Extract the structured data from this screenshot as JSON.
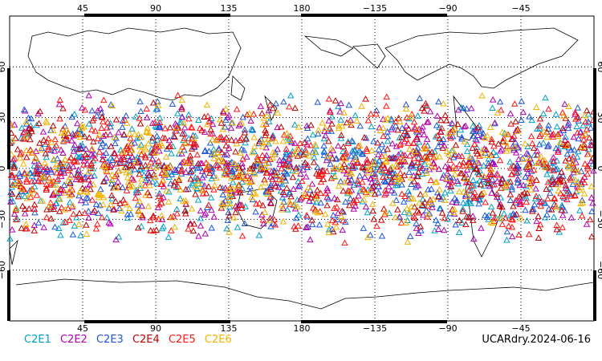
{
  "chart_data": {
    "type": "scatter",
    "x_ticks_top": [
      "45",
      "90",
      "135",
      "180",
      "−135",
      "−90",
      "−45"
    ],
    "x_ticks_bottom": [
      "45",
      "90",
      "135",
      "180",
      "−135",
      "−90",
      "−45"
    ],
    "y_ticks_left": [
      "60",
      "30",
      "0",
      "−30",
      "−60"
    ],
    "y_ticks_right": [
      "60",
      "30",
      "0",
      "−30",
      "−60"
    ],
    "lat_range": [
      -90,
      90
    ],
    "lon_range": [
      0,
      360
    ],
    "series": [
      {
        "name": "C2E1",
        "color": "#00a0c8",
        "density": [
          420
        ]
      },
      {
        "name": "C2E2",
        "color": "#b000b0",
        "density": [
          420
        ]
      },
      {
        "name": "C2E3",
        "color": "#1e56d8",
        "density": [
          420
        ]
      },
      {
        "name": "C2E4",
        "color": "#c00000",
        "density": [
          420
        ]
      },
      {
        "name": "C2E5",
        "color": "#ff1414",
        "density": [
          420
        ]
      },
      {
        "name": "C2E6",
        "color": "#f0b400",
        "density": [
          420
        ]
      }
    ],
    "lat_band": [
      -45,
      45
    ]
  },
  "footer": {
    "stamp": "UCARdry.2024-06-16"
  }
}
